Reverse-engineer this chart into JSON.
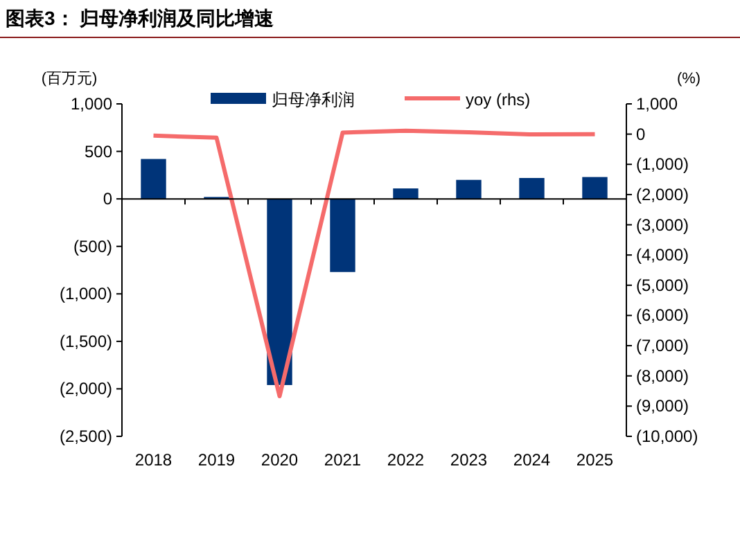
{
  "chart_data": {
    "type": "bar",
    "title": "图表3：  归母净利润及同比增速",
    "ylabel": "(百万元)",
    "y2label": "(%)",
    "categories": [
      "2018",
      "2019",
      "2020",
      "2021",
      "2022",
      "2023",
      "2024",
      "2025"
    ],
    "series": [
      {
        "name": "归母净利润",
        "color": "#003479",
        "values": [
          420,
          20,
          -1960,
          -770,
          110,
          200,
          220,
          230
        ]
      },
      {
        "name": "yoy (rhs)",
        "type": "line",
        "axis": "y2",
        "color": "#f56b6b",
        "marker": "none",
        "line_style": "solid",
        "values": [
          -50,
          -120,
          -8670,
          50,
          110,
          60,
          -10,
          0
        ]
      }
    ],
    "ylim": [
      -2500,
      1000
    ],
    "yticks": [
      {
        "value": 1000,
        "label": "1,000"
      },
      500,
      0,
      {
        "value": -500,
        "label": "(500)"
      },
      {
        "value": -1000,
        "label": "(1,000)"
      },
      {
        "value": -1500,
        "label": "(1,500)"
      },
      {
        "value": -2000,
        "label": "(2,000)"
      },
      {
        "value": -2500,
        "label": "(2,500)"
      }
    ],
    "y2lim": [
      -10000,
      1000
    ],
    "y2ticks": [
      {
        "value": 1000,
        "label": "1,000"
      },
      0,
      {
        "value": -1000,
        "label": "(1,000)"
      },
      {
        "value": -2000,
        "label": "(2,000)"
      },
      {
        "value": -3000,
        "label": "(3,000)"
      },
      {
        "value": -4000,
        "label": "(4,000)"
      },
      {
        "value": -5000,
        "label": "(5,000)"
      },
      {
        "value": -6000,
        "label": "(6,000)"
      },
      {
        "value": -7000,
        "label": "(7,000)"
      },
      {
        "value": -8000,
        "label": "(8,000)"
      },
      {
        "value": -9000,
        "label": "(9,000)"
      },
      {
        "value": -10000,
        "label": "(10,000)"
      }
    ],
    "legend": "top"
  }
}
